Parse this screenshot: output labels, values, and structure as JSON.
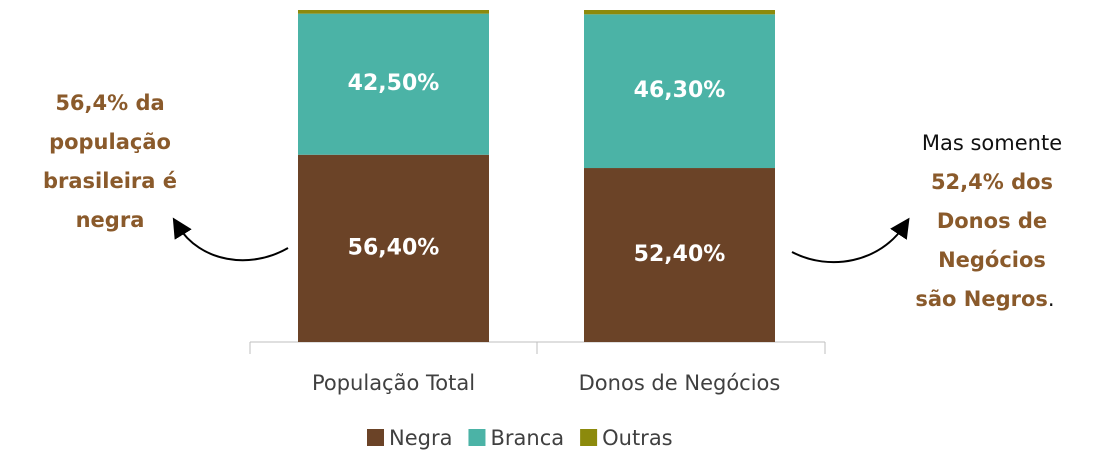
{
  "chart_data": {
    "type": "stacked_bar",
    "categories": [
      "População Total",
      "Donos de Negócios"
    ],
    "series": [
      {
        "name": "Negra",
        "color": "#6b4327",
        "values": [
          56.4,
          52.4
        ],
        "value_labels": [
          "56,40%",
          "52,40%"
        ]
      },
      {
        "name": "Branca",
        "color": "#4bb3a6",
        "values": [
          42.5,
          46.3
        ],
        "value_labels": [
          "42,50%",
          "46,30%"
        ]
      },
      {
        "name": "Outras",
        "color": "#8c8a0c",
        "values": [
          1.1,
          1.3
        ]
      }
    ],
    "ylim": [
      0,
      100
    ],
    "annotations": {
      "left": [
        "56,4% da",
        "população",
        "brasileira é",
        "negra"
      ],
      "right": {
        "intro": "Mas somente",
        "highlight": [
          "52,4% dos",
          "Donos de",
          "Negócios",
          "são Negros"
        ],
        "end": "."
      }
    }
  }
}
